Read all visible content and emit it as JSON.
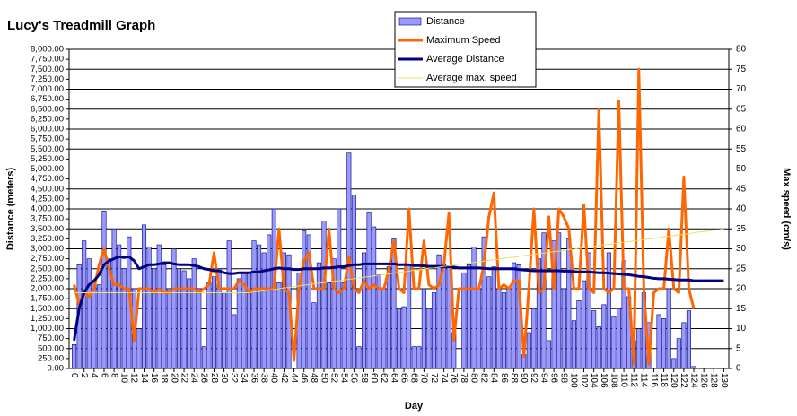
{
  "chart_data": {
    "type": "bar",
    "title": "Lucy's Treadmill Graph",
    "x_label": "Day",
    "y_label": "Distance (meters)",
    "y2_label": "Max speed (cm/s)",
    "grid": true,
    "legend": "top",
    "x": [
      0,
      1,
      2,
      3,
      4,
      5,
      6,
      7,
      8,
      9,
      10,
      11,
      12,
      13,
      14,
      15,
      16,
      17,
      18,
      19,
      20,
      21,
      22,
      23,
      24,
      25,
      26,
      27,
      28,
      29,
      30,
      31,
      32,
      33,
      34,
      35,
      36,
      37,
      38,
      39,
      40,
      41,
      42,
      43,
      44,
      45,
      46,
      47,
      48,
      49,
      50,
      51,
      52,
      53,
      54,
      55,
      56,
      57,
      58,
      59,
      60,
      61,
      62,
      63,
      64,
      65,
      66,
      67,
      68,
      69,
      70,
      71,
      72,
      73,
      74,
      75,
      76,
      77,
      78,
      79,
      80,
      81,
      82,
      83,
      84,
      85,
      86,
      87,
      88,
      89,
      90,
      91,
      92,
      93,
      94,
      95,
      96,
      97,
      98,
      99,
      100,
      101,
      102,
      103,
      104,
      105,
      106,
      107,
      108,
      109,
      110,
      111,
      112,
      113,
      114,
      115,
      116,
      117,
      118,
      119,
      120,
      121,
      122,
      123,
      124,
      125,
      126,
      127,
      128,
      129,
      130
    ],
    "xlim": [
      -1,
      131
    ],
    "xticks": [
      0,
      2,
      4,
      6,
      8,
      10,
      12,
      14,
      16,
      18,
      20,
      22,
      24,
      26,
      28,
      30,
      32,
      34,
      36,
      38,
      40,
      42,
      44,
      46,
      48,
      50,
      52,
      54,
      56,
      58,
      60,
      62,
      64,
      66,
      68,
      70,
      72,
      74,
      76,
      78,
      80,
      82,
      84,
      86,
      88,
      90,
      92,
      94,
      96,
      98,
      100,
      102,
      104,
      106,
      108,
      110,
      112,
      114,
      116,
      118,
      120,
      122,
      124,
      126,
      128,
      130
    ],
    "ylim": [
      0,
      8000
    ],
    "yticks": [
      {
        "value": 0,
        "label": "0.00"
      },
      {
        "value": 250,
        "label": "250.00"
      },
      {
        "value": 500,
        "label": "500.00"
      },
      {
        "value": 750,
        "label": "750.00"
      },
      {
        "value": 1000,
        "label": "1,000.00"
      },
      {
        "value": 1250,
        "label": "1,250.00"
      },
      {
        "value": 1500,
        "label": "1,500.00"
      },
      {
        "value": 1750,
        "label": "1,750.00"
      },
      {
        "value": 2000,
        "label": "2,000.00"
      },
      {
        "value": 2250,
        "label": "2,250.00"
      },
      {
        "value": 2500,
        "label": "2,500.00"
      },
      {
        "value": 2750,
        "label": "2,750.00"
      },
      {
        "value": 3000,
        "label": "3,000.00"
      },
      {
        "value": 3250,
        "label": "3,250.00"
      },
      {
        "value": 3500,
        "label": "3,500.00"
      },
      {
        "value": 3750,
        "label": "3,750.00"
      },
      {
        "value": 4000,
        "label": "4,000.00"
      },
      {
        "value": 4250,
        "label": "4,250.00"
      },
      {
        "value": 4500,
        "label": "4,500.00"
      },
      {
        "value": 4750,
        "label": "4,750.00"
      },
      {
        "value": 5000,
        "label": "5,000.00"
      },
      {
        "value": 5250,
        "label": "5,250.00"
      },
      {
        "value": 5500,
        "label": "5,500.00"
      },
      {
        "value": 5750,
        "label": "5,750.00"
      },
      {
        "value": 6000,
        "label": "6,000.00"
      },
      {
        "value": 6250,
        "label": "6,250.00"
      },
      {
        "value": 6500,
        "label": "6,500.00"
      },
      {
        "value": 6750,
        "label": "6,750.00"
      },
      {
        "value": 7000,
        "label": "7,000.00"
      },
      {
        "value": 7250,
        "label": "7,250.00"
      },
      {
        "value": 7500,
        "label": "7,500.00"
      },
      {
        "value": 7750,
        "label": "7,750.00"
      },
      {
        "value": 8000,
        "label": "8,000.00"
      }
    ],
    "y2lim": [
      0,
      80
    ],
    "y2ticks": [
      0,
      5,
      10,
      15,
      20,
      25,
      30,
      35,
      40,
      45,
      50,
      55,
      60,
      65,
      70,
      75,
      80
    ],
    "series": [
      {
        "name": "Distance",
        "type": "bar",
        "color": "#9999ff",
        "values": [
          600,
          2600,
          3200,
          2750,
          2200,
          2100,
          3950,
          2750,
          3500,
          3100,
          2500,
          3300,
          2000,
          1000,
          3600,
          3050,
          2500,
          3100,
          2600,
          2000,
          3000,
          2500,
          2450,
          2250,
          2750,
          2000,
          550,
          2150,
          2300,
          2500,
          1900,
          3200,
          1350,
          2250,
          2400,
          2400,
          3200,
          3100,
          2900,
          3350,
          4000,
          2150,
          2900,
          2850,
          0,
          2400,
          3450,
          3350,
          1650,
          2650,
          3700,
          2150,
          2750,
          4000,
          2150,
          5400,
          4350,
          550,
          2900,
          3900,
          3550,
          2350,
          2000,
          2550,
          3250,
          1500,
          1550,
          2600,
          550,
          550,
          2000,
          1500,
          1900,
          2850,
          2600,
          2550,
          900,
          0,
          2400,
          2600,
          3050,
          2000,
          3300,
          2300,
          2550,
          2000,
          1900,
          2000,
          2650,
          2600,
          350,
          900,
          1500,
          2750,
          3400,
          700,
          3200,
          3400,
          2000,
          3250,
          1200,
          1700,
          2200,
          2900,
          1450,
          1050,
          1600,
          2900,
          1300,
          1500,
          2700,
          1800,
          700,
          1000,
          1900,
          1150,
          0,
          1350,
          1250,
          2000,
          250,
          750,
          1150,
          1450,
          50,
          null,
          null,
          null,
          null,
          null,
          null
        ]
      },
      {
        "name": "Maximum Speed",
        "type": "line",
        "axis": "y2",
        "color": "#ff6600",
        "values": [
          21,
          16,
          19,
          18,
          20,
          26,
          30,
          25,
          21,
          21,
          20,
          20,
          7,
          20,
          20,
          20,
          19,
          20,
          19,
          19,
          20,
          20,
          20,
          20,
          20,
          19,
          20,
          21,
          29,
          20,
          20,
          20,
          20,
          22,
          21,
          19,
          20,
          20,
          20,
          20,
          20,
          35,
          20,
          19,
          2,
          20,
          27,
          29,
          20,
          20,
          20,
          35,
          20,
          19,
          20,
          28,
          20,
          19,
          22,
          20,
          21,
          20,
          20,
          25,
          32,
          20,
          19,
          40,
          20,
          20,
          32,
          21,
          20,
          21,
          26,
          39,
          7,
          20,
          20,
          20,
          20,
          20,
          26,
          38,
          44,
          20,
          21,
          20,
          22,
          22,
          3,
          20,
          40,
          19,
          20,
          38,
          20,
          40,
          38,
          35,
          20,
          20,
          41,
          20,
          19,
          65,
          20,
          19,
          20,
          67,
          20,
          20,
          1,
          75,
          20,
          1,
          19,
          20,
          20,
          35,
          20,
          19,
          48,
          20,
          15,
          null,
          null,
          null,
          null,
          null,
          null
        ]
      },
      {
        "name": "Average Distance",
        "type": "line",
        "color": "#000080",
        "values": [
          700,
          1500,
          1900,
          2100,
          2200,
          2350,
          2600,
          2700,
          2750,
          2800,
          2780,
          2800,
          2700,
          2500,
          2550,
          2600,
          2600,
          2620,
          2650,
          2650,
          2620,
          2600,
          2600,
          2600,
          2580,
          2550,
          2500,
          2480,
          2450,
          2450,
          2400,
          2380,
          2380,
          2400,
          2400,
          2400,
          2420,
          2420,
          2450,
          2470,
          2500,
          2520,
          2500,
          2500,
          2480,
          2480,
          2500,
          2500,
          2500,
          2500,
          2520,
          2520,
          2530,
          2550,
          2550,
          2580,
          2600,
          2600,
          2620,
          2620,
          2620,
          2620,
          2620,
          2620,
          2620,
          2600,
          2600,
          2600,
          2580,
          2580,
          2570,
          2560,
          2560,
          2560,
          2550,
          2550,
          2540,
          2520,
          2520,
          2520,
          2520,
          2520,
          2510,
          2500,
          2500,
          2500,
          2500,
          2500,
          2500,
          2480,
          2470,
          2460,
          2450,
          2450,
          2450,
          2450,
          2450,
          2450,
          2440,
          2440,
          2430,
          2420,
          2420,
          2420,
          2410,
          2400,
          2400,
          2390,
          2380,
          2370,
          2360,
          2350,
          2330,
          2310,
          2300,
          2280,
          2260,
          2250,
          2250,
          2240,
          2230,
          2220,
          2220,
          2220,
          2200,
          2200,
          2200,
          2200,
          2200,
          2200,
          2200
        ]
      },
      {
        "name": "Average max. speed",
        "type": "line",
        "axis": "y2",
        "color": "#e8e060",
        "values": [
          19,
          19,
          19,
          19,
          19,
          19,
          19,
          19,
          19,
          19,
          19,
          19,
          19,
          19,
          19,
          19,
          19,
          19,
          19,
          19,
          19,
          19,
          19,
          19,
          19,
          19,
          19,
          19,
          19,
          19,
          19,
          19,
          19,
          19,
          19,
          19.0,
          19.2,
          19.3,
          19.5,
          19.7,
          19.8,
          20.0,
          20.2,
          20.3,
          20.5,
          20.7,
          20.9,
          21.0,
          21.2,
          21.4,
          21.5,
          21.7,
          21.9,
          22.0,
          22.2,
          22.4,
          22.5,
          22.7,
          22.9,
          23.0,
          23.2,
          23.4,
          23.5,
          23.7,
          23.9,
          24.1,
          24.2,
          24.4,
          24.6,
          24.7,
          24.9,
          25.1,
          25.2,
          25.4,
          25.6,
          25.7,
          25.9,
          26.1,
          26.2,
          26.4,
          26.6,
          26.7,
          26.9,
          27.1,
          27.3,
          27.4,
          27.6,
          27.8,
          27.9,
          28.1,
          28.3,
          28.4,
          28.6,
          28.8,
          28.9,
          29.1,
          29.3,
          29.4,
          29.6,
          29.8,
          29.9,
          30.1,
          30.3,
          30.5,
          30.6,
          30.8,
          31.0,
          31.1,
          31.3,
          31.5,
          31.6,
          31.8,
          32.0,
          32.1,
          32.3,
          32.5,
          32.6,
          32.8,
          33.0,
          33.1,
          33.3,
          33.5,
          33.6,
          33.8,
          34.0,
          34.2,
          34.3,
          34.5,
          34.7,
          34.8,
          35.0
        ]
      }
    ]
  }
}
